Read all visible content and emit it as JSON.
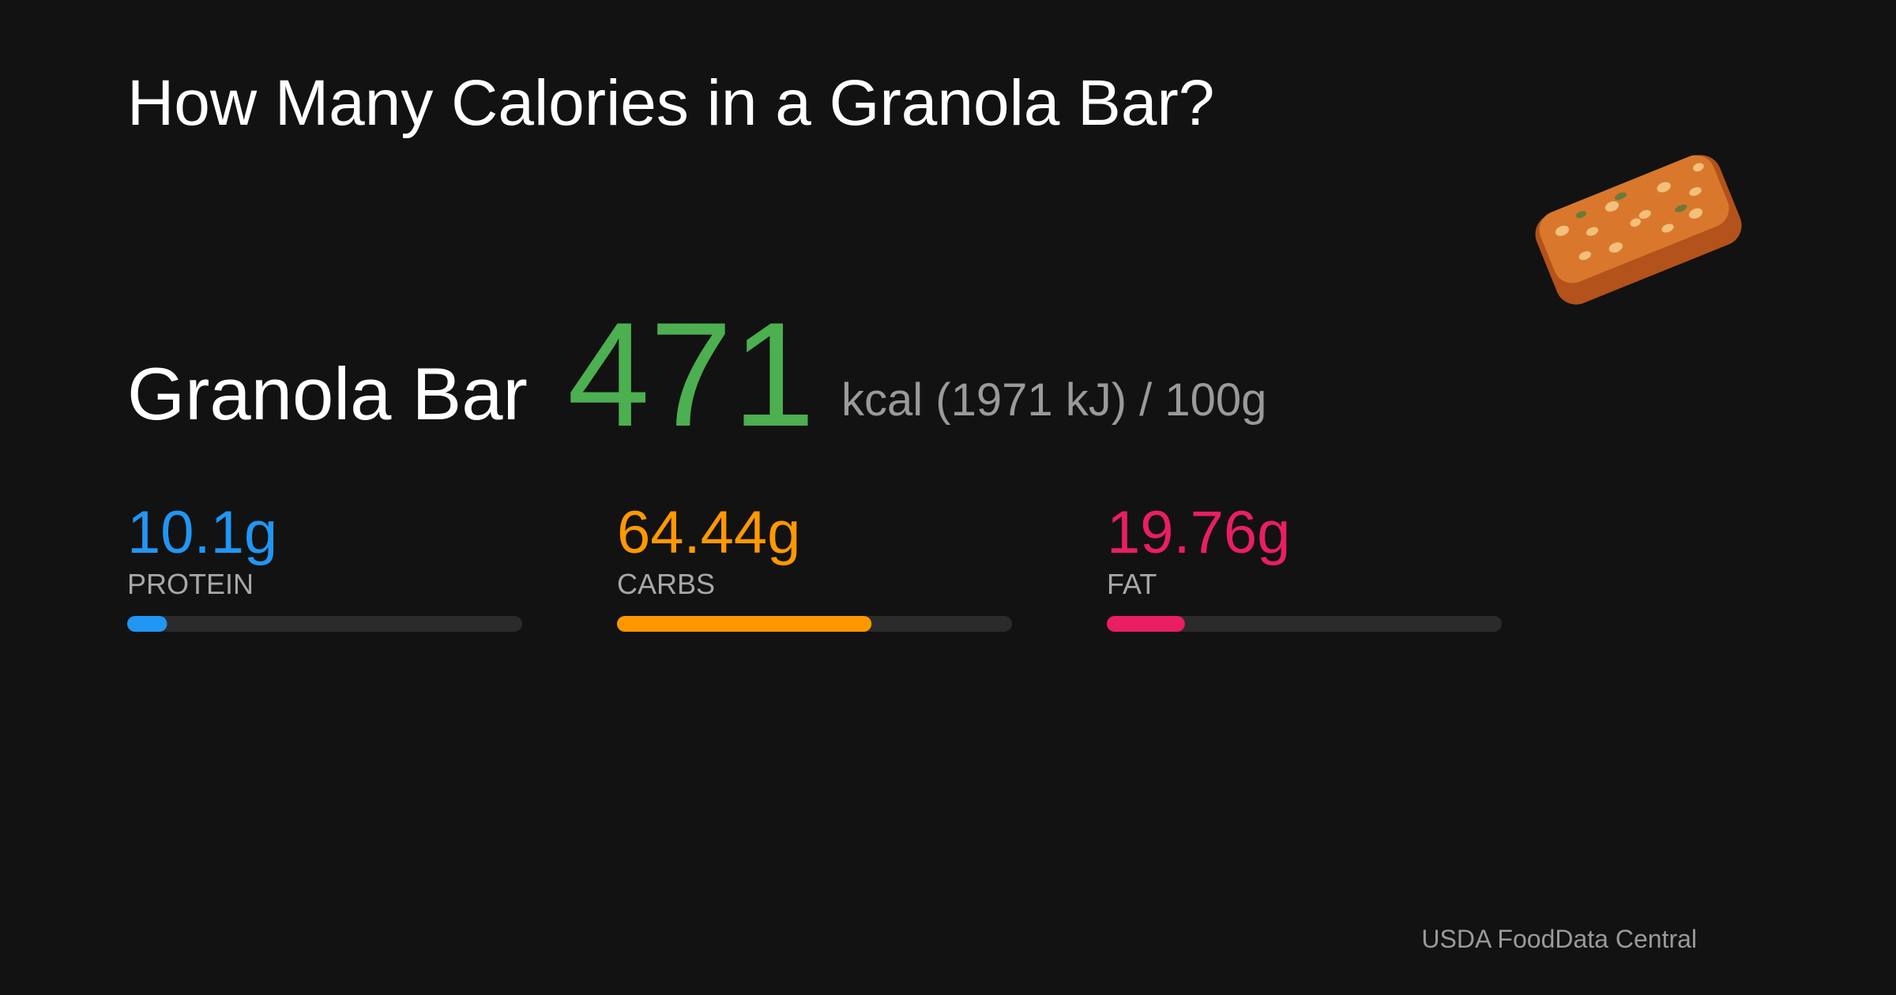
{
  "title": "How Many Calories in a Granola Bar?",
  "food": "Granola Bar",
  "calories": 471,
  "calories_color": "#4caf50",
  "energy_text": "kcal (1971 kJ) /",
  "serving": {
    "value": 100,
    "label": "100g"
  },
  "macros": [
    {
      "value": 10.1,
      "label": "10.1g",
      "name": "PROTEIN",
      "color": "#2196f3"
    },
    {
      "value": 64.44,
      "label": "64.44g",
      "name": "CARBS",
      "color": "#ff9800"
    },
    {
      "value": 19.76,
      "label": "19.76g",
      "name": "FAT",
      "color": "#e91e63"
    }
  ],
  "source": "USDA FoodData Central"
}
